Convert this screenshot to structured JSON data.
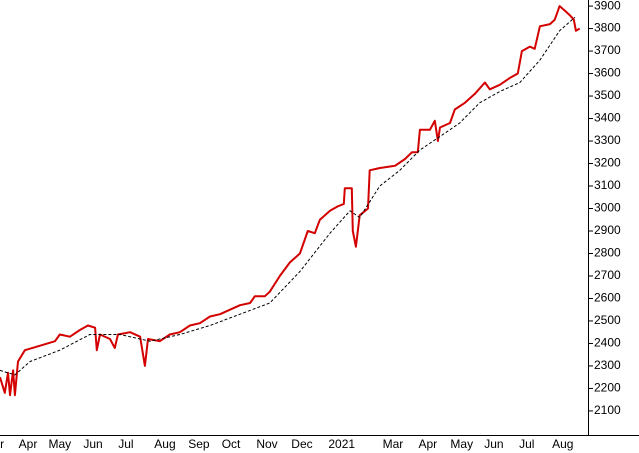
{
  "chart_data": {
    "type": "line",
    "xlim": [
      0,
      17
    ],
    "ylim": [
      1993,
      3927
    ],
    "yticks": [
      2100,
      2200,
      2300,
      2400,
      2500,
      2600,
      2700,
      2800,
      2900,
      3000,
      3100,
      3200,
      3300,
      3400,
      3500,
      3600,
      3700,
      3800,
      3900
    ],
    "xticks": [
      {
        "value": 0.06,
        "label": "r"
      },
      {
        "value": 0.81,
        "label": "Apr"
      },
      {
        "value": 1.73,
        "label": "May"
      },
      {
        "value": 2.69,
        "label": "Jun"
      },
      {
        "value": 3.64,
        "label": "Jul"
      },
      {
        "value": 4.77,
        "label": "Aug"
      },
      {
        "value": 5.75,
        "label": "Sep"
      },
      {
        "value": 6.68,
        "label": "Oct"
      },
      {
        "value": 7.72,
        "label": "Nov"
      },
      {
        "value": 8.73,
        "label": "Dec"
      },
      {
        "value": 9.88,
        "label": "2021"
      },
      {
        "value": 11.36,
        "label": "Mar"
      },
      {
        "value": 12.37,
        "label": "Apr"
      },
      {
        "value": 13.35,
        "label": "May"
      },
      {
        "value": 14.28,
        "label": "Jun"
      },
      {
        "value": 15.23,
        "label": "Jul"
      },
      {
        "value": 16.27,
        "label": "Aug"
      }
    ],
    "series": [
      {
        "color": "#d40000",
        "style": "solid",
        "x": [
          0,
          0.14,
          0.23,
          0.29,
          0.38,
          0.43,
          0.52,
          0.72,
          1.16,
          1.59,
          1.73,
          2.02,
          2.31,
          2.54,
          2.75,
          2.8,
          2.89,
          3.18,
          3.32,
          3.41,
          3.76,
          4.05,
          4.19,
          4.28,
          4.62,
          4.91,
          5.2,
          5.49,
          5.78,
          6.07,
          6.36,
          6.65,
          6.94,
          7.23,
          7.37,
          7.66,
          7.8,
          8.09,
          8.38,
          8.67,
          8.9,
          9.1,
          9.25,
          9.54,
          9.77,
          9.94,
          9.97,
          10.17,
          10.2,
          10.29,
          10.4,
          10.64,
          10.69,
          10.98,
          11.42,
          11.71,
          11.91,
          12.08,
          12.14,
          12.43,
          12.57,
          12.66,
          12.72,
          13.01,
          13.15,
          13.44,
          13.73,
          14.02,
          14.16,
          14.45,
          14.74,
          14.97,
          15.09,
          15.32,
          15.46,
          15.61,
          15.9,
          16.04,
          16.18,
          16.33,
          16.47,
          16.59,
          16.65,
          16.76
        ],
        "values": [
          2250,
          2180,
          2270,
          2170,
          2280,
          2170,
          2320,
          2370,
          2390,
          2410,
          2440,
          2430,
          2460,
          2480,
          2470,
          2370,
          2440,
          2420,
          2380,
          2440,
          2450,
          2430,
          2300,
          2420,
          2410,
          2440,
          2450,
          2480,
          2490,
          2520,
          2530,
          2550,
          2570,
          2580,
          2610,
          2610,
          2630,
          2700,
          2760,
          2800,
          2900,
          2890,
          2950,
          2990,
          3010,
          3020,
          3090,
          3090,
          2900,
          2830,
          2970,
          3000,
          3170,
          3180,
          3190,
          3220,
          3250,
          3250,
          3350,
          3350,
          3390,
          3300,
          3360,
          3380,
          3440,
          3470,
          3510,
          3560,
          3530,
          3550,
          3580,
          3600,
          3700,
          3720,
          3710,
          3810,
          3820,
          3840,
          3900,
          3880,
          3860,
          3840,
          3790,
          3800
        ]
      },
      {
        "color": "#000000",
        "style": "dashed",
        "x": [
          0,
          0.43,
          0.87,
          1.73,
          2.6,
          3.47,
          4.34,
          5.2,
          6.07,
          6.94,
          7.8,
          8.67,
          9.54,
          10.12,
          10.4,
          10.98,
          11.56,
          12.14,
          12.72,
          13.29,
          13.87,
          14.45,
          15.03,
          15.61,
          16.18,
          16.62
        ],
        "values": [
          2280,
          2260,
          2320,
          2370,
          2440,
          2440,
          2410,
          2440,
          2480,
          2530,
          2580,
          2720,
          2890,
          2990,
          2960,
          3100,
          3170,
          3260,
          3320,
          3380,
          3470,
          3520,
          3560,
          3660,
          3790,
          3850
        ]
      }
    ]
  }
}
